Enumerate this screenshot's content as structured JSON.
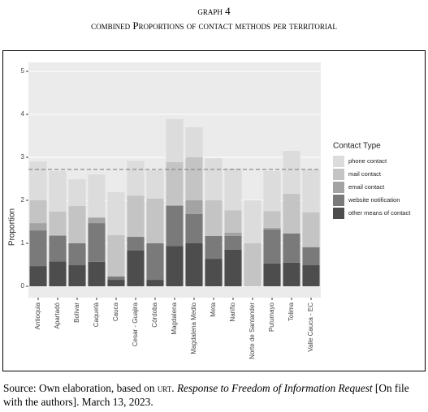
{
  "chart_data": {
    "type": "stacked_bar",
    "title": "graph 4",
    "subtitle": "combined Proportions of contact methods per territorial",
    "y_label": "Proportion",
    "legend_title": "Contact Type",
    "legend_position": "right",
    "grid": true,
    "reference_line": 2.72,
    "categories": [
      "Antioquia",
      "Apartadó",
      "Bolívar",
      "Caquetá",
      "Cauca",
      "Cesar - Guajira",
      "Córdoba",
      "Magdalena",
      "Magdalena Medio",
      "Meta",
      "Nariño",
      "Norte de Santander",
      "Putumayo",
      "Tolima",
      "Valle Cauca - EC"
    ],
    "series": [
      {
        "name": "other means of contact",
        "color": "#4d4d4d",
        "values": [
          0.47,
          0.58,
          0.49,
          0.57,
          0.15,
          0.83,
          0.15,
          0.94,
          1.0,
          0.64,
          0.85,
          0,
          0.53,
          0.55,
          0.49
        ]
      },
      {
        "name": "website notification",
        "color": "#7a7a7a",
        "values": [
          0.83,
          0.59,
          0.51,
          0.9,
          0.08,
          0.32,
          0.85,
          0.93,
          0.68,
          0.53,
          0.32,
          0,
          0.79,
          0.68,
          0.42
        ]
      },
      {
        "name": "email contact",
        "color": "#a3a3a3",
        "values": [
          0.17,
          0.02,
          0,
          0.13,
          0,
          0,
          0,
          0.02,
          0.32,
          0,
          0.08,
          0,
          0.04,
          0,
          0
        ]
      },
      {
        "name": "mail contact",
        "color": "#c4c4c4",
        "values": [
          0.53,
          0.55,
          0.87,
          0,
          0.96,
          0.96,
          1.04,
          1.0,
          1.0,
          0.83,
          0.52,
          1.0,
          0.39,
          0.92,
          0.81
        ]
      },
      {
        "name": "phone contact",
        "color": "#dcdcdc",
        "values": [
          0.9,
          0.94,
          0.62,
          1.0,
          1.0,
          0.81,
          0.66,
          1.0,
          0.7,
          0.98,
          0.97,
          1.0,
          0.93,
          1.0,
          1.0
        ]
      }
    ],
    "ylim": [
      0,
      5.2
    ],
    "yticks": [
      0,
      1,
      2,
      3,
      4,
      5
    ]
  },
  "source": {
    "prefix": "Source: Own elaboration, based on",
    "abbr": "urt.",
    "title": "Response to Freedom of Information Request",
    "rest": "[On file with the authors]. March 13, 2023."
  }
}
